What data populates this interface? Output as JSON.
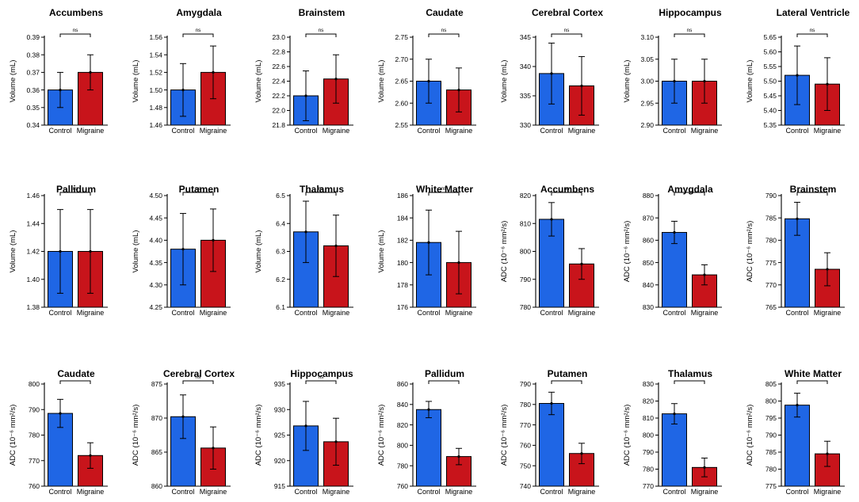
{
  "figure": {
    "group_labels": [
      "Control",
      "Migraine"
    ],
    "colors": {
      "control": "#1f66e5",
      "migraine": "#c8141b",
      "axis": "#000000"
    }
  },
  "chart_data": [
    {
      "type": "bar",
      "title": "Accumbens",
      "ylabel": "Volume (mL)",
      "categories": [
        "Control",
        "Migraine"
      ],
      "values": [
        0.36,
        0.37
      ],
      "errors": [
        0.01,
        0.01
      ],
      "ylim": [
        0.34,
        0.39
      ],
      "yticks": [
        "0.34",
        "0.35",
        "0.36",
        "0.37",
        "0.38",
        "0.39"
      ],
      "significance": "ns"
    },
    {
      "type": "bar",
      "title": "Amygdala",
      "ylabel": "Volume (mL)",
      "categories": [
        "Control",
        "Migraine"
      ],
      "values": [
        1.5,
        1.52
      ],
      "errors": [
        0.03,
        0.03
      ],
      "ylim": [
        1.46,
        1.56
      ],
      "yticks": [
        "1.46",
        "1.48",
        "1.50",
        "1.52",
        "1.54",
        "1.56"
      ],
      "significance": "ns"
    },
    {
      "type": "bar",
      "title": "Brainstem",
      "ylabel": "Volume (mL)",
      "categories": [
        "Control",
        "Migraine"
      ],
      "values": [
        22.2,
        22.43
      ],
      "errors": [
        0.34,
        0.33
      ],
      "ylim": [
        21.8,
        23.0
      ],
      "yticks": [
        "21.8",
        "22.0",
        "22.2",
        "22.4",
        "22.6",
        "22.8",
        "23.0"
      ],
      "significance": "ns"
    },
    {
      "type": "bar",
      "title": "Caudate",
      "ylabel": "Volume (mL)",
      "categories": [
        "Control",
        "Migraine"
      ],
      "values": [
        2.65,
        2.63
      ],
      "errors": [
        0.05,
        0.05
      ],
      "ylim": [
        2.55,
        2.75
      ],
      "yticks": [
        "2.55",
        "2.60",
        "2.65",
        "2.70",
        "2.75"
      ],
      "significance": "ns"
    },
    {
      "type": "bar",
      "title": "Cerebral Cortex",
      "ylabel": "Volume (mL)",
      "categories": [
        "Control",
        "Migraine"
      ],
      "values": [
        338.8,
        336.7
      ],
      "errors": [
        5.2,
        5.0
      ],
      "ylim": [
        330,
        345
      ],
      "yticks": [
        "330",
        "335",
        "340",
        "345"
      ],
      "significance": "ns"
    },
    {
      "type": "bar",
      "title": "Hippocampus",
      "ylabel": "Volume (mL)",
      "categories": [
        "Control",
        "Migraine"
      ],
      "values": [
        3.0,
        3.0
      ],
      "errors": [
        0.05,
        0.05
      ],
      "ylim": [
        2.9,
        3.1
      ],
      "yticks": [
        "2.90",
        "2.95",
        "3.00",
        "3.05",
        "3.10"
      ],
      "significance": "ns"
    },
    {
      "type": "bar",
      "title": "Lateral Ventricle",
      "ylabel": "Volume (mL)",
      "categories": [
        "Control",
        "Migraine"
      ],
      "values": [
        5.52,
        5.49
      ],
      "errors": [
        0.1,
        0.09
      ],
      "ylim": [
        5.35,
        5.65
      ],
      "yticks": [
        "5.35",
        "5.40",
        "5.45",
        "5.50",
        "5.55",
        "5.60",
        "5.65"
      ],
      "significance": "ns"
    },
    {
      "type": "bar",
      "title": "Pallidum",
      "ylabel": "Volume (mL)",
      "categories": [
        "Control",
        "Migraine"
      ],
      "values": [
        1.42,
        1.42
      ],
      "errors": [
        0.03,
        0.03
      ],
      "ylim": [
        1.38,
        1.46
      ],
      "yticks": [
        "1.38",
        "1.40",
        "1.42",
        "1.44",
        "1.46"
      ],
      "significance": "ns"
    },
    {
      "type": "bar",
      "title": "Putamen",
      "ylabel": "Volume (mL)",
      "categories": [
        "Control",
        "Migraine"
      ],
      "values": [
        4.38,
        4.4
      ],
      "errors": [
        0.08,
        0.07
      ],
      "ylim": [
        4.25,
        4.5
      ],
      "yticks": [
        "4.25",
        "4.30",
        "4.35",
        "4.40",
        "4.45",
        "4.50"
      ],
      "significance": "ns"
    },
    {
      "type": "bar",
      "title": "Thalamus",
      "ylabel": "Volume (mL)",
      "categories": [
        "Control",
        "Migraine"
      ],
      "values": [
        6.37,
        6.32
      ],
      "errors": [
        0.11,
        0.11
      ],
      "ylim": [
        6.1,
        6.5
      ],
      "yticks": [
        "6.1",
        "6.2",
        "6.3",
        "6.4",
        "6.5"
      ],
      "significance": "ns"
    },
    {
      "type": "bar",
      "title": "White Matter",
      "ylabel": "Volume (mL)",
      "categories": [
        "Control",
        "Migraine"
      ],
      "values": [
        181.8,
        180.0
      ],
      "errors": [
        2.9,
        2.8
      ],
      "ylim": [
        176,
        186
      ],
      "yticks": [
        "176",
        "178",
        "180",
        "182",
        "184",
        "186"
      ],
      "significance": "ns"
    },
    {
      "type": "bar",
      "title": "Accumbens",
      "ylabel": "ADC (10⁻⁶ mm²/s)",
      "categories": [
        "Control",
        "Migraine"
      ],
      "values": [
        811.5,
        795.5
      ],
      "errors": [
        6.0,
        5.5
      ],
      "ylim": [
        780,
        820
      ],
      "yticks": [
        "780",
        "790",
        "800",
        "810",
        "820"
      ],
      "significance": "ns"
    },
    {
      "type": "bar",
      "title": "Amygdala",
      "ylabel": "ADC (10⁻⁶ mm²/s)",
      "categories": [
        "Control",
        "Migraine"
      ],
      "values": [
        863.5,
        844.5
      ],
      "errors": [
        5.0,
        4.5
      ],
      "ylim": [
        830,
        880
      ],
      "yticks": [
        "830",
        "840",
        "850",
        "860",
        "870",
        "880"
      ],
      "significance": ""
    },
    {
      "type": "bar",
      "title": "Brainstem",
      "ylabel": "ADC (10⁻⁶ mm²/s)",
      "categories": [
        "Control",
        "Migraine"
      ],
      "values": [
        784.8,
        773.5
      ],
      "errors": [
        3.7,
        3.7
      ],
      "ylim": [
        765,
        790
      ],
      "yticks": [
        "765",
        "770",
        "775",
        "780",
        "785",
        "790"
      ],
      "significance": ""
    },
    {
      "type": "bar",
      "title": "Caudate",
      "ylabel": "ADC (10⁻⁶ mm²/s)",
      "categories": [
        "Control",
        "Migraine"
      ],
      "values": [
        788.5,
        772.0
      ],
      "errors": [
        5.5,
        5.0
      ],
      "ylim": [
        760,
        800
      ],
      "yticks": [
        "760",
        "770",
        "780",
        "790",
        "800"
      ],
      "significance": ""
    },
    {
      "type": "bar",
      "title": "Cerebral Cortex",
      "ylabel": "ADC (10⁻⁶ mm²/s)",
      "categories": [
        "Control",
        "Migraine"
      ],
      "values": [
        870.2,
        865.6
      ],
      "errors": [
        3.2,
        3.1
      ],
      "ylim": [
        860,
        875
      ],
      "yticks": [
        "860",
        "865",
        "870",
        "875"
      ],
      "significance": "ns"
    },
    {
      "type": "bar",
      "title": "Hippocampus",
      "ylabel": "ADC (10⁻⁶ mm²/s)",
      "categories": [
        "Control",
        "Migraine"
      ],
      "values": [
        926.8,
        923.7
      ],
      "errors": [
        4.8,
        4.6
      ],
      "ylim": [
        915,
        935
      ],
      "yticks": [
        "915",
        "920",
        "925",
        "930",
        "935"
      ],
      "significance": "ns"
    },
    {
      "type": "bar",
      "title": "Pallidum",
      "ylabel": "ADC (10⁻⁶ mm²/s)",
      "categories": [
        "Control",
        "Migraine"
      ],
      "values": [
        835.0,
        789.0
      ],
      "errors": [
        8.0,
        8.0
      ],
      "ylim": [
        760,
        860
      ],
      "yticks": [
        "760",
        "780",
        "800",
        "820",
        "840",
        "860"
      ],
      "significance": ""
    },
    {
      "type": "bar",
      "title": "Putamen",
      "ylabel": "ADC (10⁻⁶ mm²/s)",
      "categories": [
        "Control",
        "Migraine"
      ],
      "values": [
        780.5,
        756.0
      ],
      "errors": [
        5.5,
        5.0
      ],
      "ylim": [
        740,
        790
      ],
      "yticks": [
        "740",
        "750",
        "760",
        "770",
        "780",
        "790"
      ],
      "significance": ""
    },
    {
      "type": "bar",
      "title": "Thalamus",
      "ylabel": "ADC (10⁻⁶ mm²/s)",
      "categories": [
        "Control",
        "Migraine"
      ],
      "values": [
        812.5,
        781.0
      ],
      "errors": [
        6.0,
        5.5
      ],
      "ylim": [
        770,
        830
      ],
      "yticks": [
        "770",
        "780",
        "790",
        "800",
        "810",
        "820",
        "830"
      ],
      "significance": ""
    },
    {
      "type": "bar",
      "title": "White Matter",
      "ylabel": "ADC (10⁻⁶ mm²/s)",
      "categories": [
        "Control",
        "Migraine"
      ],
      "values": [
        798.8,
        784.5
      ],
      "errors": [
        3.5,
        3.7
      ],
      "ylim": [
        775,
        805
      ],
      "yticks": [
        "775",
        "780",
        "785",
        "790",
        "795",
        "800",
        "805"
      ],
      "significance": ""
    }
  ]
}
